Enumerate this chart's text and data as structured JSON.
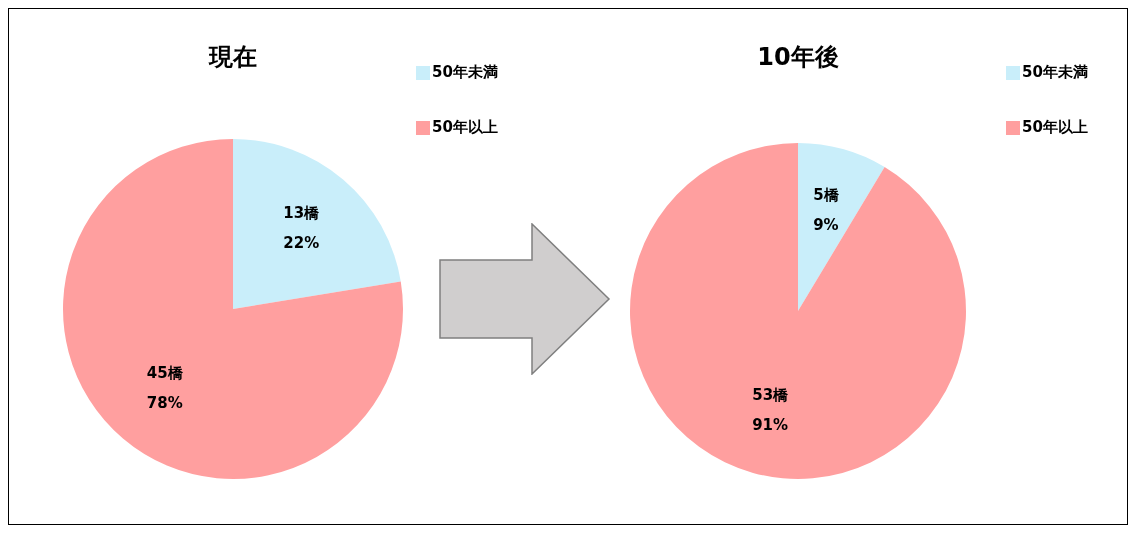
{
  "chart_data": [
    {
      "type": "pie",
      "title": "現在",
      "categories": [
        "50年未満",
        "50年以上"
      ],
      "values": [
        13,
        45
      ],
      "colors": [
        "#c9eefa",
        "#ff9f9f"
      ],
      "value_labels": [
        "13橋\n22%",
        "45橋\n78%"
      ],
      "legend": "top right"
    },
    {
      "type": "pie",
      "title": "10年後",
      "categories": [
        "50年未満",
        "50年以上"
      ],
      "values": [
        5,
        53
      ],
      "colors": [
        "#c9eefa",
        "#ff9f9f"
      ],
      "value_labels": [
        "5橋\n9%",
        "53橋\n91%"
      ],
      "legend": "top right"
    }
  ]
}
